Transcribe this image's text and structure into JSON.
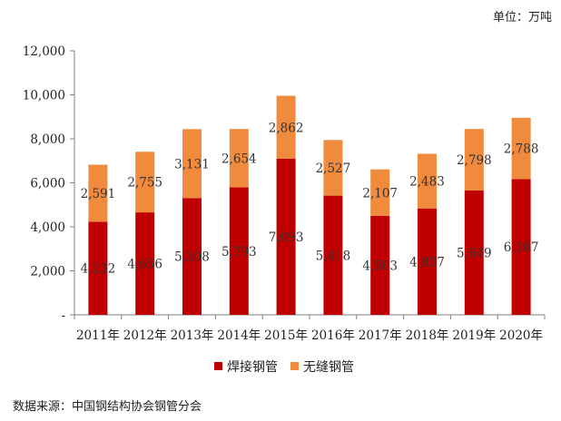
{
  "unit_label": "单位：万吨",
  "source_label": "数据来源：中国钢结构协会钢管分会",
  "colors": {
    "welded": "#c00000",
    "seamless": "#f08a3c",
    "axis": "#808080"
  },
  "chart_data": {
    "type": "bar",
    "stacked": true,
    "title": "",
    "xlabel": "",
    "ylabel": "",
    "ylim": [
      0,
      12000
    ],
    "categories": [
      "2011年",
      "2012年",
      "2013年",
      "2014年",
      "2015年",
      "2016年",
      "2017年",
      "2018年",
      "2019年",
      "2020年"
    ],
    "yticks": [
      0,
      2000,
      4000,
      6000,
      8000,
      10000,
      12000
    ],
    "ytick_labels": [
      "-",
      "2,000",
      "4,000",
      "6,000",
      "8,000",
      "10,000",
      "12,000"
    ],
    "series": [
      {
        "name": "焊接钢管",
        "values": [
          4232,
          4656,
          5308,
          5793,
          7093,
          5418,
          4503,
          4837,
          5649,
          6167
        ],
        "labels": [
          "4,232",
          "4,656",
          "5,308",
          "5,793",
          "7,093",
          "5,418",
          "4,503",
          "4,837",
          "5,649",
          "6,167"
        ]
      },
      {
        "name": "无缝钢管",
        "values": [
          2591,
          2755,
          3131,
          2654,
          2862,
          2527,
          2107,
          2483,
          2798,
          2788
        ],
        "labels": [
          "2,591",
          "2,755",
          "3,131",
          "2,654",
          "2,862",
          "2,527",
          "2,107",
          "2,483",
          "2,798",
          "2,788"
        ]
      }
    ],
    "legend_position": "bottom"
  }
}
